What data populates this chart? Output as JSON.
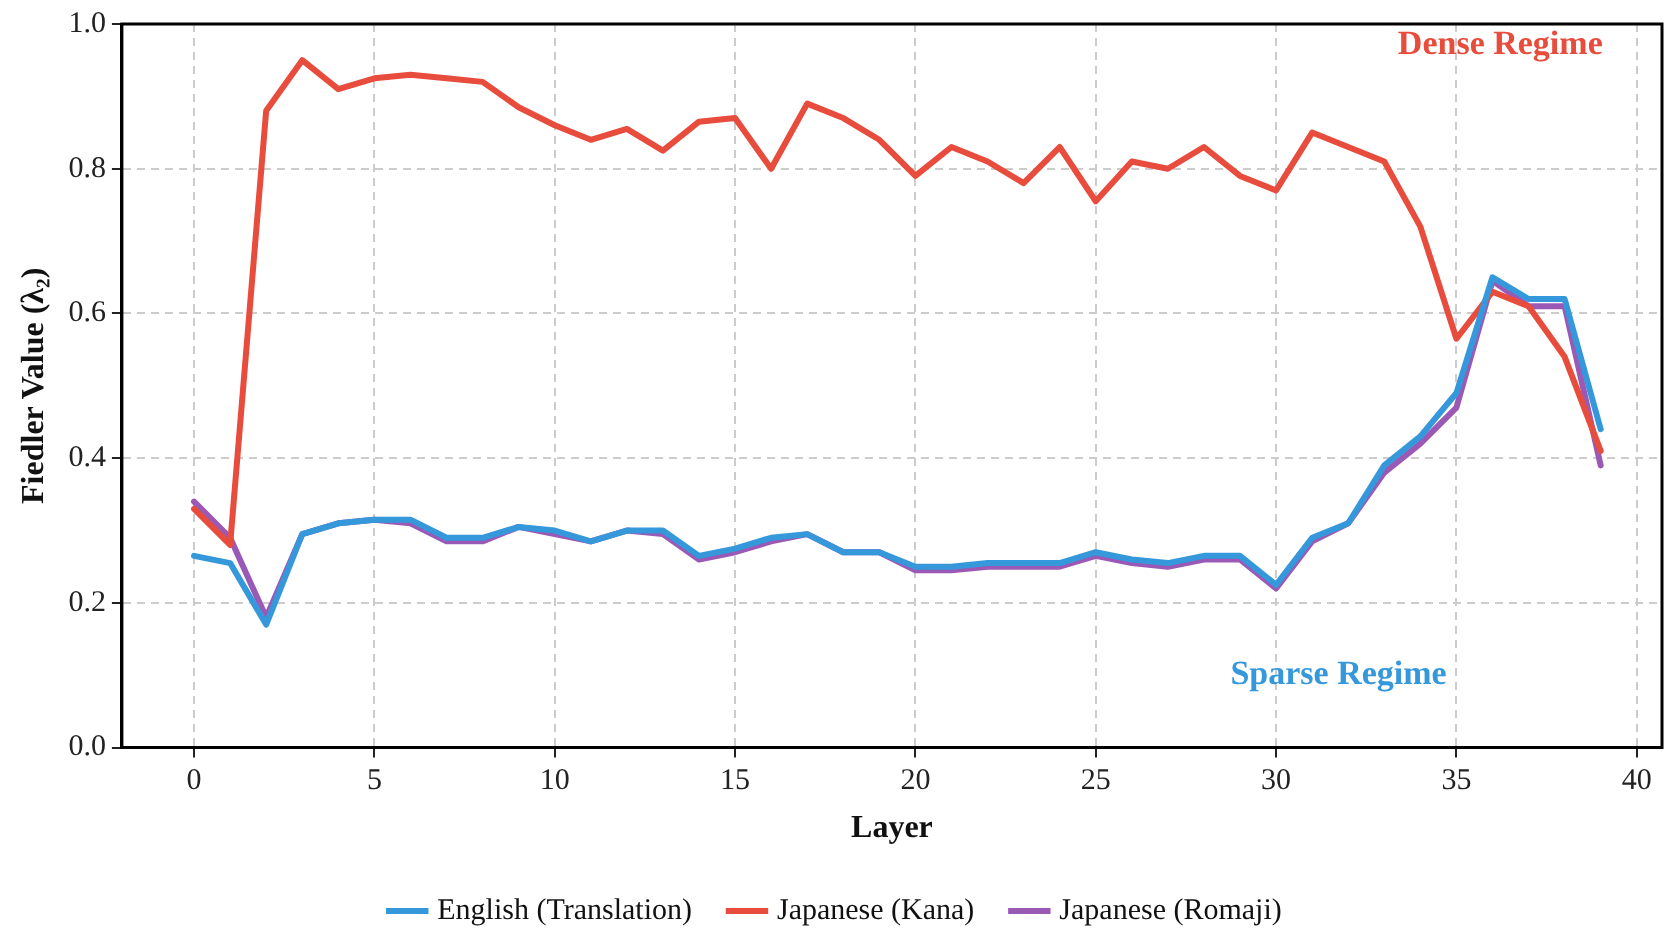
{
  "chart_data": {
    "type": "line",
    "xlabel": "Layer",
    "ylabel": "Fiedler Value (λ₂)",
    "x": [
      0,
      1,
      2,
      3,
      4,
      5,
      6,
      7,
      8,
      9,
      10,
      11,
      12,
      13,
      14,
      15,
      16,
      17,
      18,
      19,
      20,
      21,
      22,
      23,
      24,
      25,
      26,
      27,
      28,
      29,
      30,
      31,
      32,
      33,
      34,
      35,
      36,
      37,
      38,
      39
    ],
    "series": [
      {
        "name": "English (Translation)",
        "color": "#3498db",
        "values": [
          0.265,
          0.255,
          0.17,
          0.295,
          0.31,
          0.315,
          0.315,
          0.29,
          0.29,
          0.305,
          0.3,
          0.285,
          0.3,
          0.3,
          0.265,
          0.275,
          0.29,
          0.295,
          0.27,
          0.27,
          0.25,
          0.25,
          0.255,
          0.255,
          0.255,
          0.27,
          0.26,
          0.255,
          0.265,
          0.265,
          0.225,
          0.29,
          0.31,
          0.39,
          0.43,
          0.49,
          0.65,
          0.62,
          0.62,
          0.44
        ]
      },
      {
        "name": "Japanese (Kana)",
        "color": "#e74c3c",
        "values": [
          0.33,
          0.28,
          0.88,
          0.95,
          0.91,
          0.925,
          0.93,
          0.925,
          0.92,
          0.885,
          0.86,
          0.84,
          0.855,
          0.825,
          0.865,
          0.87,
          0.8,
          0.89,
          0.87,
          0.84,
          0.79,
          0.83,
          0.81,
          0.78,
          0.83,
          0.755,
          0.81,
          0.8,
          0.83,
          0.79,
          0.77,
          0.85,
          0.83,
          0.81,
          0.72,
          0.565,
          0.63,
          0.61,
          0.54,
          0.41
        ]
      },
      {
        "name": "Japanese (Romaji)",
        "color": "#9b59b6",
        "values": [
          0.34,
          0.29,
          0.18,
          0.295,
          0.31,
          0.315,
          0.31,
          0.285,
          0.285,
          0.305,
          0.295,
          0.285,
          0.3,
          0.295,
          0.26,
          0.27,
          0.285,
          0.295,
          0.27,
          0.27,
          0.245,
          0.245,
          0.25,
          0.25,
          0.25,
          0.265,
          0.255,
          0.25,
          0.26,
          0.26,
          0.22,
          0.285,
          0.31,
          0.38,
          0.42,
          0.47,
          0.645,
          0.61,
          0.61,
          0.39
        ]
      }
    ],
    "xlim": [
      -2,
      40.7
    ],
    "xticks": [
      0,
      5,
      10,
      15,
      20,
      25,
      30,
      35,
      40
    ],
    "ylim": [
      0,
      1
    ],
    "yticks": [
      {
        "value": 0,
        "label": "0.0"
      },
      0.2,
      0.4,
      0.6,
      0.8,
      {
        "value": 1,
        "label": "1.0"
      }
    ],
    "annotations": [
      "Dense Regime",
      "Sparse Regime"
    ],
    "grid": true,
    "legend": "bottom",
    "line_style": "solid",
    "marker": "none"
  }
}
